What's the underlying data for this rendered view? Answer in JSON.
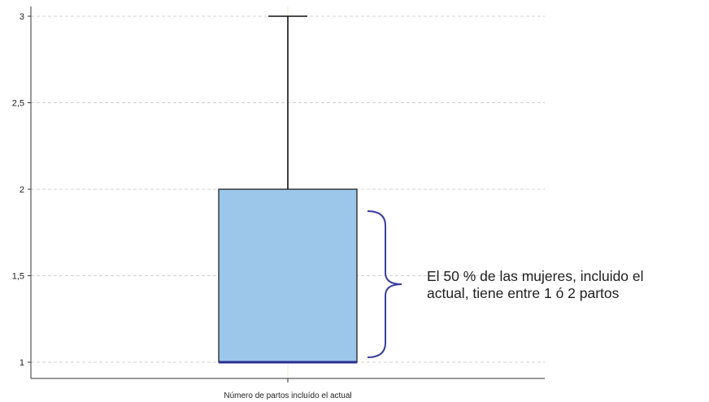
{
  "chart_data": {
    "type": "boxplot",
    "categories": [
      "Número de partos incluído el actual"
    ],
    "ylim": [
      0.9,
      3.05
    ],
    "yticks": [
      1,
      1.5,
      2,
      2.5,
      3
    ],
    "ytick_labels": [
      "1",
      "1,5",
      "2",
      "2,5",
      "3"
    ],
    "box": {
      "min": 1,
      "q1": 1,
      "median": 1,
      "q3": 2,
      "max": 3
    },
    "grid": true,
    "colors": {
      "box_fill": "#9dc7ea",
      "median_line": "#2a2f8f",
      "bracket": "#3a3fa0",
      "grid": "#d0d0d0"
    },
    "annotation": {
      "line1": "El 50 % de las mujeres, incluido el",
      "line2": "actual, tiene entre 1 ó 2 partos"
    }
  }
}
